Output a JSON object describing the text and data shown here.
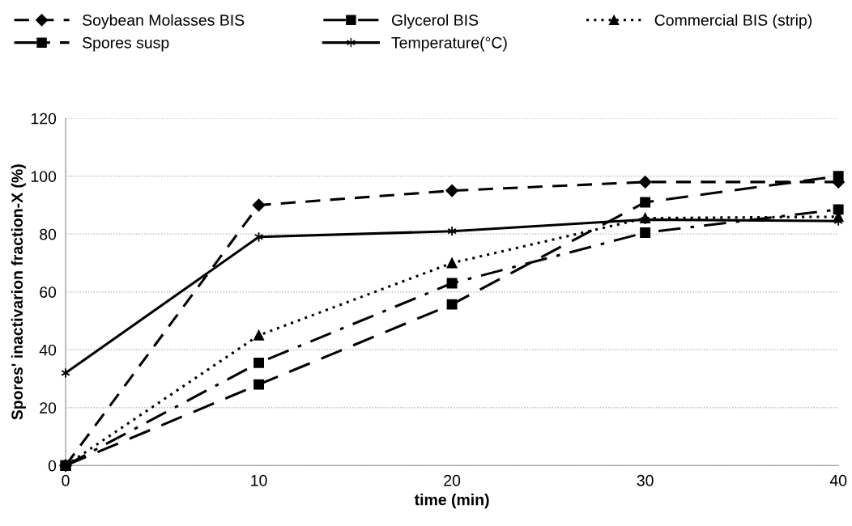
{
  "chart_data": {
    "type": "line",
    "xlabel": "time (min)",
    "ylabel": "Spores' inactivarion fraction-X (%)",
    "x": [
      0,
      10,
      20,
      30,
      40
    ],
    "series": [
      {
        "name": "Soybean Molasses BIS",
        "color": "#000000",
        "marker": "diamond",
        "line_style": "dashed",
        "values": [
          0,
          90,
          95,
          98,
          98
        ]
      },
      {
        "name": "Glycerol BIS",
        "color": "#000000",
        "marker": "square",
        "line_style": "longdash",
        "values": [
          0,
          28,
          55.7,
          91,
          100
        ]
      },
      {
        "name": "Commercial BIS (strip)",
        "color": "#000000",
        "marker": "triangle",
        "line_style": "dotted",
        "values": [
          0,
          45,
          70,
          85.5,
          86
        ]
      },
      {
        "name": "Spores susp",
        "color": "#000000",
        "marker": "square",
        "line_style": "dashdot",
        "values": [
          0,
          35.5,
          63,
          80.5,
          88.5
        ]
      },
      {
        "name": "Temperature(°C)",
        "color": "#000000",
        "marker": "cross",
        "line_style": "solid",
        "values": [
          32,
          79,
          81,
          85,
          84.5
        ]
      }
    ],
    "xlim": [
      0,
      40
    ],
    "xticks": [
      0,
      10,
      20,
      30,
      40
    ],
    "ylim": [
      0,
      120
    ],
    "yticks": [
      0,
      20,
      40,
      60,
      80,
      100,
      120
    ],
    "grid": "y",
    "legend": "top"
  }
}
